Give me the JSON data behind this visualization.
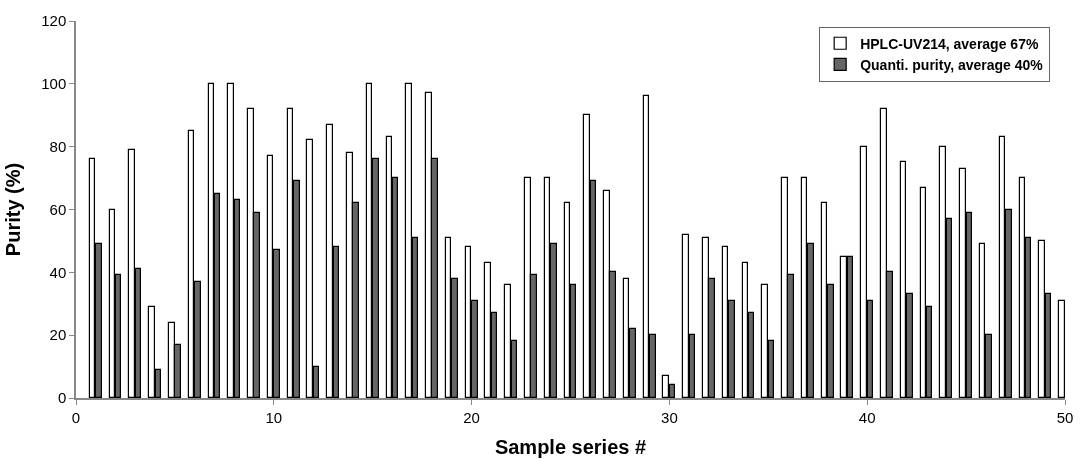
{
  "chart_data": {
    "type": "bar",
    "xlabel": "Sample series #",
    "ylabel": "Purity (%)",
    "x": [
      1,
      2,
      3,
      4,
      5,
      6,
      7,
      8,
      9,
      10,
      11,
      12,
      13,
      14,
      15,
      16,
      17,
      18,
      19,
      20,
      21,
      22,
      23,
      24,
      25,
      26,
      27,
      28,
      29,
      30,
      31,
      32,
      33,
      34,
      35,
      36,
      37,
      38,
      39,
      40,
      41,
      42,
      43,
      44,
      45,
      46,
      47,
      48,
      49,
      50
    ],
    "series": [
      {
        "name": "HPLC-UV214, average 67%",
        "color": "#ffffff",
        "values": [
          76,
          60,
          79,
          29,
          24,
          85,
          100,
          100,
          92,
          77,
          92,
          82,
          87,
          78,
          100,
          83,
          100,
          97,
          51,
          48,
          43,
          36,
          70,
          70,
          62,
          90,
          66,
          38,
          96,
          7,
          52,
          51,
          48,
          43,
          36,
          70,
          70,
          62,
          45,
          80,
          92,
          75,
          67,
          80,
          73,
          49,
          83,
          70,
          50,
          31
        ]
      },
      {
        "name": "Quanti. purity, average 40%",
        "color": "#666666",
        "values": [
          49,
          39,
          41,
          9,
          17,
          37,
          65,
          63,
          59,
          47,
          69,
          10,
          48,
          62,
          76,
          70,
          51,
          76,
          38,
          31,
          27,
          18,
          39,
          49,
          36,
          69,
          40,
          22,
          20,
          4,
          20,
          38,
          31,
          27,
          18,
          39,
          49,
          36,
          45,
          31,
          40,
          33,
          29,
          57,
          59,
          20,
          60,
          51,
          33,
          null
        ]
      }
    ],
    "xlim": [
      0,
      50
    ],
    "xticks": [
      0,
      10,
      20,
      30,
      40,
      50
    ],
    "ylim": [
      0,
      120
    ],
    "yticks": [
      0,
      20,
      40,
      60,
      80,
      100,
      120
    ],
    "legend": "top right"
  }
}
